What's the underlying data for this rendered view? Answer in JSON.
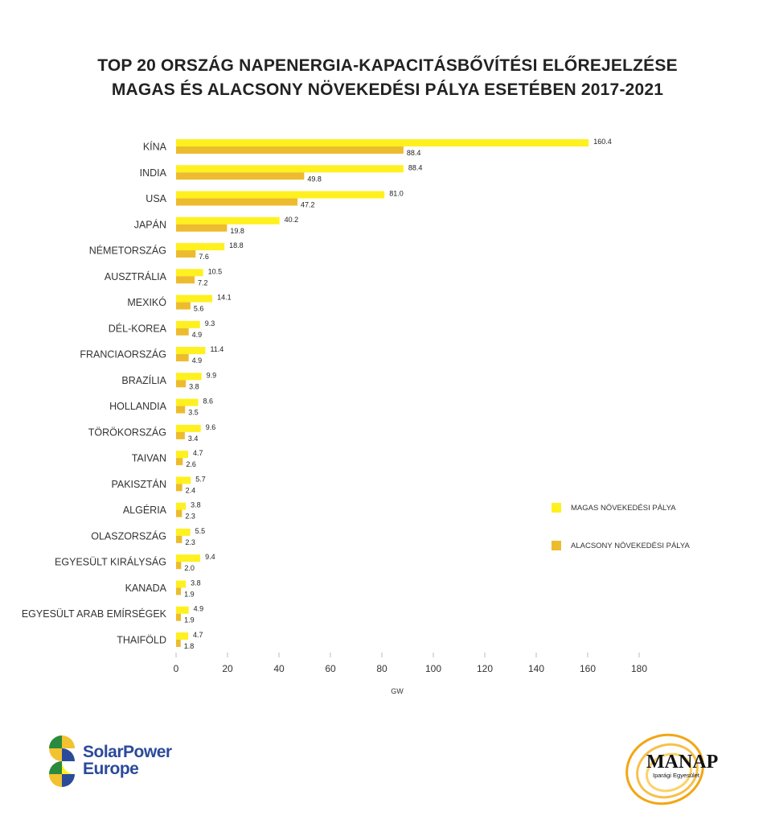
{
  "title": {
    "line1": "TOP 20 ORSZÁG NAPENERGIA-KAPACITÁSBŐVÍTÉSI ELŐREJELZÉSE",
    "line2": "MAGAS ÉS ALACSONY NÖVEKEDÉSI PÁLYA ESETÉBEN 2017-2021"
  },
  "chart_data": {
    "type": "bar",
    "orientation": "horizontal",
    "title": "TOP 20 ORSZÁG NAPENERGIA-KAPACITÁSBŐVÍTÉSI ELŐREJELZÉSE MAGAS ÉS ALACSONY NÖVEKEDÉSI PÁLYA ESETÉBEN 2017-2021",
    "xlabel": "GW",
    "ylabel": "",
    "xlim": [
      0,
      180
    ],
    "xticks": [
      0,
      20,
      40,
      60,
      80,
      100,
      120,
      140,
      160,
      180
    ],
    "grid": false,
    "legend_position": "right",
    "categories": [
      "KÍNA",
      "INDIA",
      "USA",
      "JAPÁN",
      "NÉMETORSZÁG",
      "AUSZTRÁLIA",
      "MEXIKÓ",
      "DÉL-KOREA",
      "FRANCIAORSZÁG",
      "BRAZÍLIA",
      "HOLLANDIA",
      "TÖRÖKORSZÁG",
      "TAIVAN",
      "PAKISZTÁN",
      "ALGÉRIA",
      "OLASZORSZÁG",
      "EGYESÜLT KIRÁLYSÁG",
      "KANADA",
      "EGYESÜLT ARAB EMÍRSÉGEK",
      "THAIFÖLD"
    ],
    "series": [
      {
        "name": "MAGAS NÖVEKEDÉSI PÁLYA",
        "color": "#FFF01F",
        "values": [
          160.4,
          88.4,
          81.0,
          40.2,
          18.8,
          10.5,
          14.1,
          9.3,
          11.4,
          9.9,
          8.6,
          9.6,
          4.7,
          5.7,
          3.8,
          5.5,
          9.4,
          3.8,
          4.9,
          4.7
        ]
      },
      {
        "name": "ALACSONY NÖVEKEDÉSI PÁLYA",
        "color": "#EDBB2E",
        "values": [
          88.4,
          49.8,
          47.2,
          19.8,
          7.6,
          7.2,
          5.6,
          4.9,
          4.9,
          3.8,
          3.5,
          3.4,
          2.6,
          2.4,
          2.3,
          2.3,
          2.0,
          1.9,
          1.9,
          1.8
        ]
      }
    ]
  },
  "logos": {
    "left": "SolarPower Europe",
    "left_line1": "SolarPower",
    "left_line2": "Europe",
    "right": "MANAP Iparági Egyesület"
  }
}
